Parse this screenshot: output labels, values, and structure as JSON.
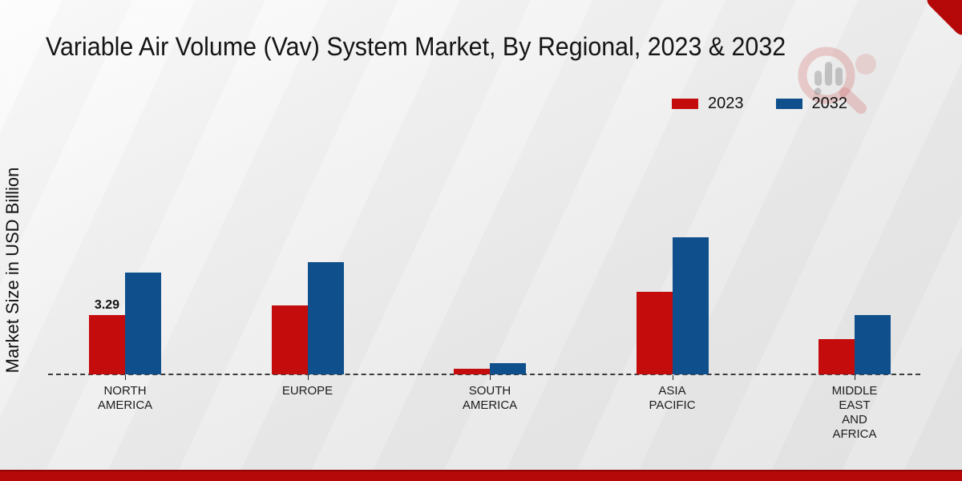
{
  "header": {
    "title": "Variable Air Volume (Vav) System Market, By Regional, 2023 & 2032"
  },
  "watermark": {
    "icon": "magnifier-bar-chart-logo"
  },
  "footer": {
    "accent_color": "#b50808"
  },
  "chart_data": {
    "type": "bar",
    "title": "Variable Air Volume (Vav) System Market, By Regional, 2023 & 2032",
    "xlabel": "",
    "ylabel": "Market Size in USD Billion",
    "categories": [
      "NORTH AMERICA",
      "EUROPE",
      "SOUTH AMERICA",
      "ASIA PACIFIC",
      "MIDDLE EAST AND AFRICA"
    ],
    "category_lines": [
      [
        "NORTH",
        "AMERICA"
      ],
      [
        "EUROPE"
      ],
      [
        "SOUTH",
        "AMERICA"
      ],
      [
        "ASIA",
        "PACIFIC"
      ],
      [
        "MIDDLE",
        "EAST",
        "AND",
        "AFRICA"
      ]
    ],
    "series": [
      {
        "name": "2023",
        "color": "#c40c0c",
        "values": [
          3.29,
          3.8,
          0.3,
          4.6,
          1.95
        ]
      },
      {
        "name": "2032",
        "color": "#0f508c",
        "values": [
          5.65,
          6.2,
          0.6,
          7.6,
          3.3
        ]
      }
    ],
    "data_labels": [
      {
        "series": "2023",
        "category": "NORTH AMERICA",
        "text": "3.29"
      }
    ],
    "ylim": [
      0,
      8
    ],
    "grid": false,
    "legend_position": "top-right",
    "baseline_style": "dashed",
    "y_axis_ticks_visible": false
  }
}
